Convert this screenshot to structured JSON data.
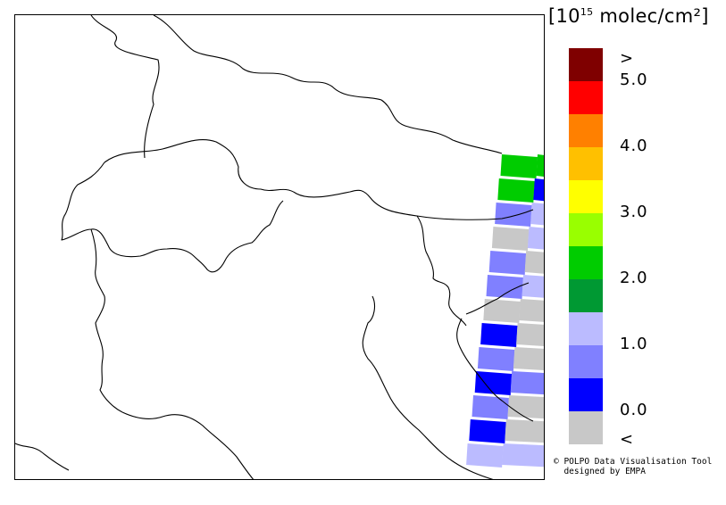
{
  "legend": {
    "unit_prefix": "[10",
    "unit_exponent": "15",
    "unit_suffix": " molec/cm²]",
    "colors": [
      "#7f0000",
      "#ff0000",
      "#ff8000",
      "#ffc000",
      "#ffff00",
      "#99ff00",
      "#00cc00",
      "#009933",
      "#bbbbff",
      "#8080ff",
      "#0000ff",
      "#c8c8c8"
    ],
    "labels": [
      ">",
      "5.0",
      "4.0",
      "3.0",
      "2.0",
      "1.0",
      "0.0",
      "<"
    ]
  },
  "credit": {
    "line1": "© POLPO Data Visualisation Tool",
    "line2": "  designed by EMPA"
  },
  "swath": {
    "rows": [
      [
        "#00cc00",
        "#00cc00"
      ],
      [
        "#00cc00",
        "#0000ff"
      ],
      [
        "#8080ff",
        "#bbbbff"
      ],
      [
        "#c8c8c8",
        "#bbbbff"
      ],
      [
        "#8080ff",
        "#c8c8c8"
      ],
      [
        "#8080ff",
        "#bbbbff"
      ],
      [
        "#c8c8c8",
        "#c8c8c8"
      ],
      [
        "#0000ff",
        "#c8c8c8"
      ],
      [
        "#8080ff",
        "#c8c8c8"
      ],
      [
        "#0000ff",
        "#8080ff"
      ],
      [
        "#8080ff",
        "#c8c8c8"
      ],
      [
        "#0000ff",
        "#c8c8c8"
      ],
      [
        "#bbbbff",
        "#bbbbff"
      ]
    ]
  }
}
